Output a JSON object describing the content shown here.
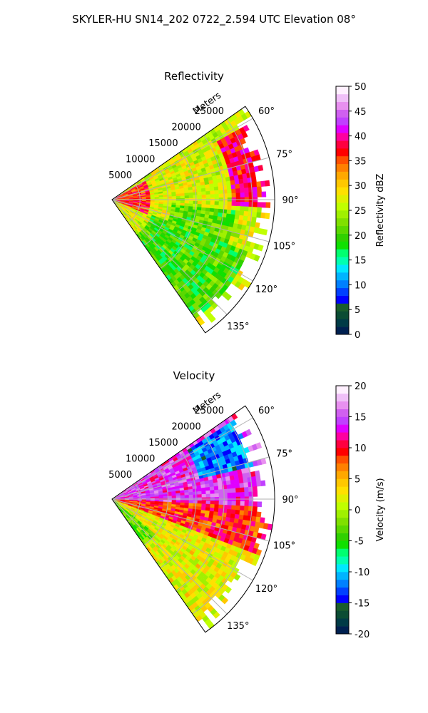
{
  "figure": {
    "suptitle": "SKYLER-HU  SN14_202  0722_2.594 UTC Elevation 08°"
  },
  "chart_data": [
    {
      "type": "heatmap",
      "projection": "polar-sector",
      "title": "Reflectivity",
      "range_axis_label": "Meters",
      "range_ticks": [
        "5000",
        "10000",
        "15000",
        "20000",
        "25000"
      ],
      "range_tick_values": [
        5000,
        10000,
        15000,
        20000,
        25000
      ],
      "range_max": 29000,
      "azimuth_range": [
        55,
        145
      ],
      "azimuth_ticks": [
        "60°",
        "75°",
        "90°",
        "105°",
        "120°",
        "135°"
      ],
      "azimuth_tick_values": [
        60,
        75,
        90,
        105,
        120,
        135
      ],
      "grid": true,
      "colorbar": {
        "label": "Reflectivity dBZ",
        "range": [
          0,
          50
        ],
        "ticks": [
          "0",
          "5",
          "10",
          "15",
          "20",
          "25",
          "30",
          "35",
          "40",
          "45",
          "50"
        ],
        "colors": [
          "#002050",
          "#003b46",
          "#0b4c34",
          "#1a5d2b",
          "#0000ff",
          "#0040ff",
          "#0080ff",
          "#00b4ff",
          "#00e8ff",
          "#00ffb0",
          "#00ff70",
          "#10e000",
          "#30d000",
          "#5ad800",
          "#80e000",
          "#a0f000",
          "#c0ff00",
          "#e0f000",
          "#ffe000",
          "#ffc800",
          "#ffa800",
          "#ff8000",
          "#ff5000",
          "#ff0000",
          "#ff0040",
          "#ff00a0",
          "#e000ff",
          "#c040ff",
          "#d060f0",
          "#e890f0",
          "#f0c0f8",
          "#fff0ff"
        ]
      },
      "regions": [
        {
          "desc": "broad moderate echo",
          "az": [
            55,
            145
          ],
          "r": [
            0,
            29000
          ],
          "value": 27
        },
        {
          "desc": "near-radar core",
          "az": [
            62,
            112
          ],
          "r": [
            0,
            7000
          ],
          "value": 36
        },
        {
          "desc": "strong cell north-east",
          "az": [
            62,
            92
          ],
          "r": [
            21000,
            29000
          ],
          "value": 38
        },
        {
          "desc": "weak band",
          "az": [
            95,
            110
          ],
          "r": [
            11000,
            22000
          ],
          "value": 21
        },
        {
          "desc": "weak outer fringe south",
          "az": [
            112,
            145
          ],
          "r": [
            8000,
            26000
          ],
          "value": 20
        }
      ]
    },
    {
      "type": "heatmap",
      "projection": "polar-sector",
      "title": "Velocity",
      "range_axis_label": "Meters",
      "range_ticks": [
        "5000",
        "10000",
        "15000",
        "20000",
        "25000"
      ],
      "range_tick_values": [
        5000,
        10000,
        15000,
        20000,
        25000
      ],
      "range_max": 29000,
      "azimuth_range": [
        55,
        145
      ],
      "azimuth_ticks": [
        "60°",
        "75°",
        "90°",
        "105°",
        "120°",
        "135°"
      ],
      "azimuth_tick_values": [
        60,
        75,
        90,
        105,
        120,
        135
      ],
      "grid": true,
      "colorbar": {
        "label": "Velocity (m/s)",
        "range": [
          -20,
          20
        ],
        "ticks": [
          "-20",
          "-15",
          "-10",
          "-5",
          "0",
          "5",
          "10",
          "15",
          "20"
        ],
        "colors": [
          "#002050",
          "#003b46",
          "#0b4c34",
          "#1a5d2b",
          "#0000ff",
          "#0040ff",
          "#0080ff",
          "#00b4ff",
          "#00e8ff",
          "#00ffb0",
          "#00ff70",
          "#10e000",
          "#30d000",
          "#5ad800",
          "#80e000",
          "#a0f000",
          "#c0ff00",
          "#e0f000",
          "#ffe000",
          "#ffc800",
          "#ffa800",
          "#ff8000",
          "#ff5000",
          "#ff0000",
          "#ff0040",
          "#ff00a0",
          "#e000ff",
          "#c040ff",
          "#d060f0",
          "#e890f0",
          "#f0c0f8",
          "#fff0ff"
        ]
      },
      "regions": [
        {
          "desc": "outbound north",
          "az": [
            55,
            95
          ],
          "r": [
            0,
            29000
          ],
          "value": 14
        },
        {
          "desc": "inbound pocket",
          "az": [
            57,
            76
          ],
          "r": [
            16000,
            26000
          ],
          "value": -12
        },
        {
          "desc": "strong outbound band",
          "az": [
            93,
            112
          ],
          "r": [
            0,
            29000
          ],
          "value": 9
        },
        {
          "desc": "weak outbound south",
          "az": [
            112,
            145
          ],
          "r": [
            0,
            29000
          ],
          "value": 2
        },
        {
          "desc": "near-zero edge",
          "az": [
            130,
            145
          ],
          "r": [
            0,
            10000
          ],
          "value": -3
        }
      ]
    }
  ]
}
